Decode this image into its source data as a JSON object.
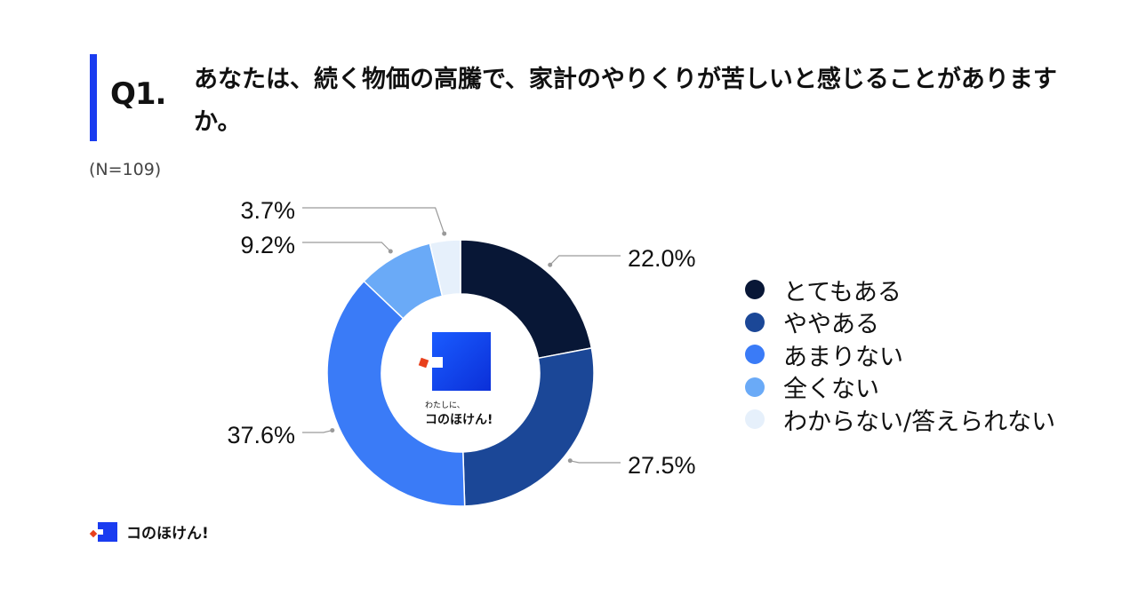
{
  "header": {
    "question_number": "Q1.",
    "question_text": "あなたは、続く物価の高騰で、家計のやりくりが苦しいと感じることがありますか。",
    "sample_size": "(N=109)"
  },
  "brand": {
    "center_tagline": "わたしに、",
    "center_name": "コのほけん!",
    "footer_name": "コのほけん!",
    "primary_color": "#1a3cf0",
    "accent_color": "#e8401c"
  },
  "chart_data": {
    "type": "pie",
    "donut": true,
    "title": "",
    "legend_position": "right",
    "categories": [
      "とてもある",
      "ややある",
      "あまりない",
      "全くない",
      "わからない/答えられない"
    ],
    "values": [
      22.0,
      27.5,
      37.6,
      9.2,
      3.7
    ],
    "value_labels": [
      "22.0%",
      "27.5%",
      "37.6%",
      "9.2%",
      "3.7%"
    ],
    "colors": [
      "#081736",
      "#1b4797",
      "#3a7bf7",
      "#6aaaf7",
      "#e6f0fb"
    ]
  }
}
